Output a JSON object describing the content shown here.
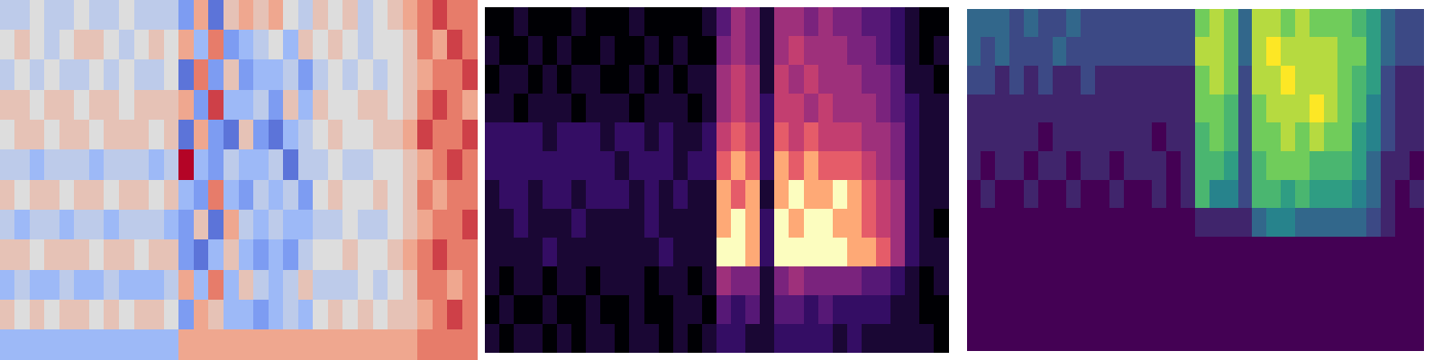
{
  "chart_data": [
    {
      "type": "heatmap",
      "color": "coolwarm",
      "tick_labels": false,
      "zlim": [
        -5,
        5
      ],
      "cells": [
        [
          -1,
          -1,
          0,
          -1,
          -1,
          0,
          -1,
          -1,
          0,
          -1,
          -1,
          -1,
          -3,
          2,
          -4,
          1,
          2,
          1,
          2,
          0,
          -1,
          1,
          0,
          1,
          -1,
          0,
          1,
          2,
          3,
          4,
          3,
          3
        ],
        [
          0,
          1,
          0,
          -1,
          0,
          1,
          1,
          0,
          -1,
          0,
          1,
          0,
          2,
          -2,
          3,
          -3,
          -2,
          -1,
          0,
          -2,
          1,
          0,
          1,
          0,
          -1,
          0,
          0,
          1,
          3,
          2,
          4,
          3
        ],
        [
          -1,
          0,
          -1,
          0,
          -1,
          -1,
          0,
          -1,
          0,
          -1,
          -1,
          0,
          -4,
          3,
          -3,
          1,
          -3,
          -2,
          -2,
          -1,
          -3,
          -1,
          0,
          -1,
          0,
          -1,
          0,
          1,
          2,
          3,
          3,
          4
        ],
        [
          1,
          1,
          0,
          1,
          1,
          0,
          1,
          1,
          0,
          1,
          1,
          1,
          2,
          -3,
          4,
          -2,
          -2,
          -1,
          -3,
          1,
          -2,
          1,
          0,
          0,
          1,
          1,
          0,
          1,
          3,
          4,
          3,
          2
        ],
        [
          0,
          1,
          1,
          0,
          1,
          1,
          0,
          1,
          1,
          1,
          0,
          1,
          -4,
          2,
          -3,
          -4,
          1,
          -3,
          -4,
          -2,
          -1,
          0,
          1,
          0,
          0,
          1,
          1,
          2,
          4,
          3,
          3,
          4
        ],
        [
          -1,
          -1,
          -2,
          -1,
          -1,
          -1,
          -2,
          -1,
          -1,
          -1,
          -2,
          -1,
          5,
          -2,
          -3,
          -1,
          -2,
          -2,
          -1,
          -4,
          -1,
          -1,
          0,
          -1,
          -1,
          0,
          0,
          1,
          2,
          3,
          4,
          3
        ],
        [
          1,
          0,
          1,
          1,
          0,
          1,
          1,
          0,
          1,
          1,
          0,
          1,
          -2,
          -3,
          3,
          -2,
          -3,
          -1,
          -2,
          -1,
          -3,
          0,
          1,
          0,
          0,
          1,
          0,
          1,
          3,
          2,
          3,
          3
        ],
        [
          -1,
          -2,
          -1,
          -1,
          -2,
          -1,
          -1,
          -2,
          -1,
          -1,
          -1,
          -2,
          -3,
          1,
          -4,
          2,
          -1,
          -2,
          -1,
          -2,
          -2,
          -1,
          -1,
          0,
          -1,
          -1,
          0,
          1,
          2,
          3,
          3,
          4
        ],
        [
          1,
          1,
          0,
          1,
          1,
          1,
          0,
          1,
          1,
          0,
          1,
          1,
          -3,
          -4,
          -2,
          1,
          -2,
          -3,
          -2,
          -3,
          -1,
          0,
          0,
          1,
          0,
          0,
          1,
          2,
          3,
          4,
          3,
          3
        ],
        [
          -2,
          -1,
          -2,
          -2,
          -1,
          -2,
          -2,
          -1,
          -2,
          -2,
          -2,
          -1,
          2,
          -2,
          3,
          -2,
          1,
          -1,
          -2,
          -1,
          1,
          -1,
          -1,
          -1,
          0,
          -1,
          0,
          1,
          3,
          3,
          2,
          3
        ],
        [
          1,
          0,
          1,
          0,
          1,
          1,
          0,
          1,
          0,
          1,
          1,
          0,
          -3,
          2,
          1,
          -2,
          -2,
          -3,
          -2,
          -1,
          -2,
          0,
          1,
          0,
          1,
          0,
          1,
          1,
          2,
          3,
          4,
          3
        ],
        [
          -2,
          -2,
          -2,
          -2,
          -2,
          -2,
          -2,
          -2,
          -2,
          -2,
          -2,
          -2,
          2,
          2,
          2,
          2,
          2,
          2,
          2,
          2,
          2,
          2,
          2,
          2,
          2,
          2,
          2,
          2,
          3,
          3,
          3,
          3
        ]
      ]
    },
    {
      "type": "heatmap",
      "color": "magma",
      "tick_labels": false,
      "zlim": [
        0,
        9
      ],
      "cells": [
        [
          0,
          0,
          1,
          0,
          0,
          0,
          1,
          0,
          0,
          0,
          1,
          0,
          0,
          0,
          0,
          1,
          3,
          5,
          4,
          1,
          5,
          5,
          4,
          5,
          4,
          4,
          3,
          3,
          2,
          1,
          0,
          0
        ],
        [
          1,
          0,
          0,
          1,
          0,
          1,
          0,
          0,
          1,
          0,
          0,
          1,
          0,
          1,
          0,
          0,
          4,
          5,
          4,
          1,
          5,
          6,
          5,
          5,
          5,
          4,
          4,
          3,
          2,
          1,
          0,
          1
        ],
        [
          0,
          1,
          1,
          0,
          1,
          0,
          1,
          1,
          0,
          0,
          1,
          0,
          1,
          0,
          1,
          1,
          5,
          6,
          5,
          1,
          6,
          5,
          6,
          5,
          5,
          5,
          4,
          4,
          3,
          1,
          1,
          0
        ],
        [
          1,
          1,
          0,
          1,
          1,
          1,
          0,
          1,
          1,
          1,
          0,
          1,
          1,
          1,
          0,
          1,
          5,
          6,
          5,
          2,
          6,
          6,
          5,
          6,
          5,
          5,
          5,
          4,
          3,
          2,
          1,
          1
        ],
        [
          2,
          2,
          2,
          2,
          1,
          2,
          2,
          2,
          1,
          2,
          2,
          1,
          2,
          1,
          1,
          2,
          6,
          7,
          6,
          2,
          7,
          6,
          7,
          6,
          6,
          6,
          5,
          5,
          4,
          2,
          1,
          1
        ],
        [
          2,
          2,
          2,
          2,
          2,
          2,
          2,
          2,
          2,
          1,
          2,
          2,
          2,
          1,
          2,
          2,
          7,
          8,
          7,
          2,
          8,
          7,
          8,
          7,
          7,
          7,
          6,
          5,
          4,
          2,
          1,
          1
        ],
        [
          1,
          2,
          2,
          1,
          2,
          2,
          1,
          2,
          2,
          2,
          1,
          2,
          1,
          2,
          1,
          1,
          8,
          7,
          8,
          1,
          8,
          9,
          8,
          8,
          9,
          8,
          7,
          6,
          5,
          2,
          1,
          1
        ],
        [
          1,
          1,
          2,
          1,
          1,
          1,
          2,
          1,
          1,
          1,
          1,
          2,
          1,
          1,
          1,
          1,
          8,
          9,
          8,
          2,
          9,
          8,
          9,
          9,
          8,
          8,
          7,
          6,
          5,
          2,
          1,
          0
        ],
        [
          1,
          1,
          1,
          1,
          2,
          1,
          1,
          1,
          1,
          1,
          1,
          1,
          2,
          1,
          1,
          1,
          9,
          9,
          8,
          2,
          9,
          9,
          9,
          9,
          9,
          8,
          8,
          7,
          5,
          2,
          1,
          1
        ],
        [
          1,
          0,
          1,
          1,
          0,
          1,
          1,
          0,
          1,
          1,
          1,
          0,
          1,
          1,
          0,
          1,
          5,
          4,
          4,
          1,
          4,
          5,
          4,
          4,
          4,
          4,
          3,
          3,
          2,
          1,
          0,
          1
        ],
        [
          0,
          1,
          0,
          0,
          1,
          0,
          0,
          1,
          0,
          0,
          1,
          0,
          0,
          1,
          1,
          0,
          3,
          2,
          3,
          1,
          3,
          3,
          2,
          3,
          2,
          2,
          2,
          2,
          1,
          1,
          0,
          0
        ],
        [
          1,
          0,
          1,
          1,
          0,
          1,
          0,
          1,
          1,
          0,
          1,
          1,
          0,
          1,
          0,
          1,
          2,
          2,
          1,
          1,
          2,
          2,
          2,
          2,
          1,
          2,
          1,
          1,
          1,
          1,
          1,
          0
        ]
      ]
    },
    {
      "type": "heatmap",
      "color": "viridis",
      "tick_labels": false,
      "zlim": [
        0,
        9
      ],
      "cells": [
        [
          3,
          3,
          3,
          2,
          3,
          2,
          2,
          3,
          2,
          2,
          2,
          2,
          2,
          2,
          2,
          2,
          7,
          8,
          7,
          3,
          8,
          8,
          7,
          8,
          7,
          7,
          7,
          6,
          5,
          3,
          2,
          2
        ],
        [
          3,
          2,
          3,
          2,
          2,
          2,
          3,
          2,
          2,
          2,
          2,
          2,
          2,
          2,
          2,
          2,
          8,
          8,
          7,
          3,
          8,
          9,
          8,
          8,
          8,
          8,
          7,
          7,
          5,
          3,
          2,
          2
        ],
        [
          2,
          2,
          1,
          2,
          1,
          2,
          1,
          1,
          2,
          1,
          1,
          1,
          1,
          1,
          1,
          1,
          7,
          8,
          7,
          2,
          8,
          8,
          9,
          8,
          8,
          8,
          7,
          6,
          5,
          2,
          1,
          1
        ],
        [
          1,
          1,
          1,
          1,
          1,
          1,
          1,
          1,
          1,
          1,
          1,
          1,
          1,
          1,
          1,
          1,
          7,
          7,
          6,
          2,
          7,
          8,
          8,
          8,
          9,
          8,
          7,
          6,
          4,
          2,
          1,
          1
        ],
        [
          1,
          1,
          1,
          1,
          1,
          0,
          1,
          1,
          1,
          1,
          1,
          1,
          1,
          0,
          1,
          1,
          6,
          7,
          6,
          2,
          7,
          7,
          8,
          7,
          8,
          7,
          7,
          5,
          4,
          2,
          1,
          1
        ],
        [
          1,
          0,
          1,
          1,
          0,
          1,
          1,
          0,
          1,
          1,
          0,
          1,
          1,
          1,
          0,
          1,
          6,
          6,
          5,
          2,
          6,
          7,
          7,
          7,
          6,
          6,
          6,
          5,
          3,
          1,
          1,
          0
        ],
        [
          0,
          1,
          0,
          0,
          1,
          0,
          0,
          1,
          0,
          0,
          1,
          0,
          0,
          1,
          0,
          1,
          6,
          4,
          4,
          2,
          6,
          6,
          5,
          6,
          5,
          5,
          5,
          4,
          3,
          1,
          0,
          1
        ],
        [
          0,
          0,
          0,
          0,
          0,
          0,
          0,
          0,
          0,
          0,
          0,
          0,
          0,
          0,
          0,
          0,
          1,
          1,
          1,
          1,
          3,
          4,
          4,
          3,
          3,
          3,
          3,
          3,
          2,
          1,
          0,
          0
        ],
        [
          0,
          0,
          0,
          0,
          0,
          0,
          0,
          0,
          0,
          0,
          0,
          0,
          0,
          0,
          0,
          0,
          0,
          0,
          0,
          0,
          0,
          0,
          0,
          0,
          0,
          0,
          0,
          0,
          0,
          0,
          0,
          0
        ],
        [
          0,
          0,
          0,
          0,
          0,
          0,
          0,
          0,
          0,
          0,
          0,
          0,
          0,
          0,
          0,
          0,
          0,
          0,
          0,
          0,
          0,
          0,
          0,
          0,
          0,
          0,
          0,
          0,
          0,
          0,
          0,
          0
        ],
        [
          0,
          0,
          0,
          0,
          0,
          0,
          0,
          0,
          0,
          0,
          0,
          0,
          0,
          0,
          0,
          0,
          0,
          0,
          0,
          0,
          0,
          0,
          0,
          0,
          0,
          0,
          0,
          0,
          0,
          0,
          0,
          0
        ],
        [
          0,
          0,
          0,
          0,
          0,
          0,
          0,
          0,
          0,
          0,
          0,
          0,
          0,
          0,
          0,
          0,
          0,
          0,
          0,
          0,
          0,
          0,
          0,
          0,
          0,
          0,
          0,
          0,
          0,
          0,
          0,
          0
        ]
      ]
    }
  ]
}
